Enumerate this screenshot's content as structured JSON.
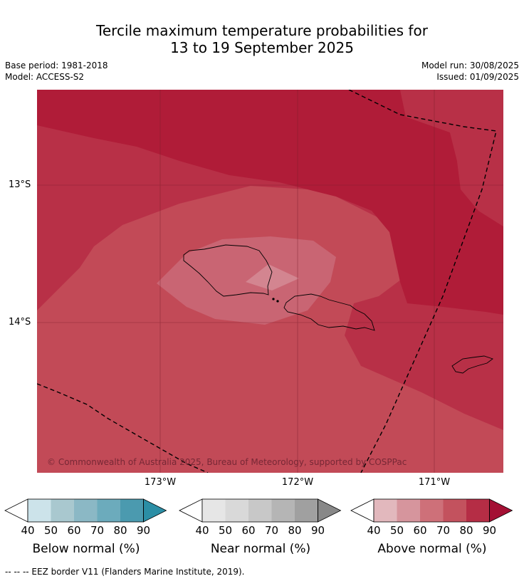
{
  "title_line1": "Tercile maximum temperature probabilities for",
  "title_line2": "13 to 19 September 2025",
  "base_period": "Base period: 1981-2018",
  "model": "Model: ACCESS-S2",
  "model_run": "Model run: 30/08/2025",
  "issued": "Issued: 01/09/2025",
  "map": {
    "lat_labels": [
      "13°S",
      "14°S"
    ],
    "lon_labels": [
      "173°W",
      "172°W",
      "171°W"
    ],
    "copyright": "© Commonwealth of Australia 2025, Bureau of Meteorology, supported by COSPPac"
  },
  "colorbars": [
    {
      "label": "Below normal (%)",
      "ticks": [
        "40",
        "50",
        "60",
        "70",
        "80",
        "90"
      ],
      "colors": [
        "#cce3ea",
        "#a9c8cf",
        "#8bb8c5",
        "#6cabbc",
        "#4b9aaf",
        "#2b8ea5"
      ]
    },
    {
      "label": "Near normal (%)",
      "ticks": [
        "40",
        "50",
        "60",
        "70",
        "80",
        "90"
      ],
      "colors": [
        "#e6e6e6",
        "#d9d9d9",
        "#c8c8c8",
        "#b5b5b5",
        "#a0a0a0",
        "#888888"
      ]
    },
    {
      "label": "Above normal (%)",
      "ticks": [
        "40",
        "50",
        "60",
        "70",
        "80",
        "90"
      ],
      "colors": [
        "#e2b8bd",
        "#d6959d",
        "#ce7079",
        "#c3525e",
        "#b52d45",
        "#a41034"
      ]
    }
  ],
  "footnote": "-- -- -- EEZ border V11 (Flanders Marine Institute, 2019).",
  "colors": {
    "cat_80_90": "#b01c38",
    "cat_70_80": "#b83047",
    "cat_60_70": "#c24a57",
    "cat_50_60": "#c96573",
    "cat_40_50": "#d38590"
  }
}
